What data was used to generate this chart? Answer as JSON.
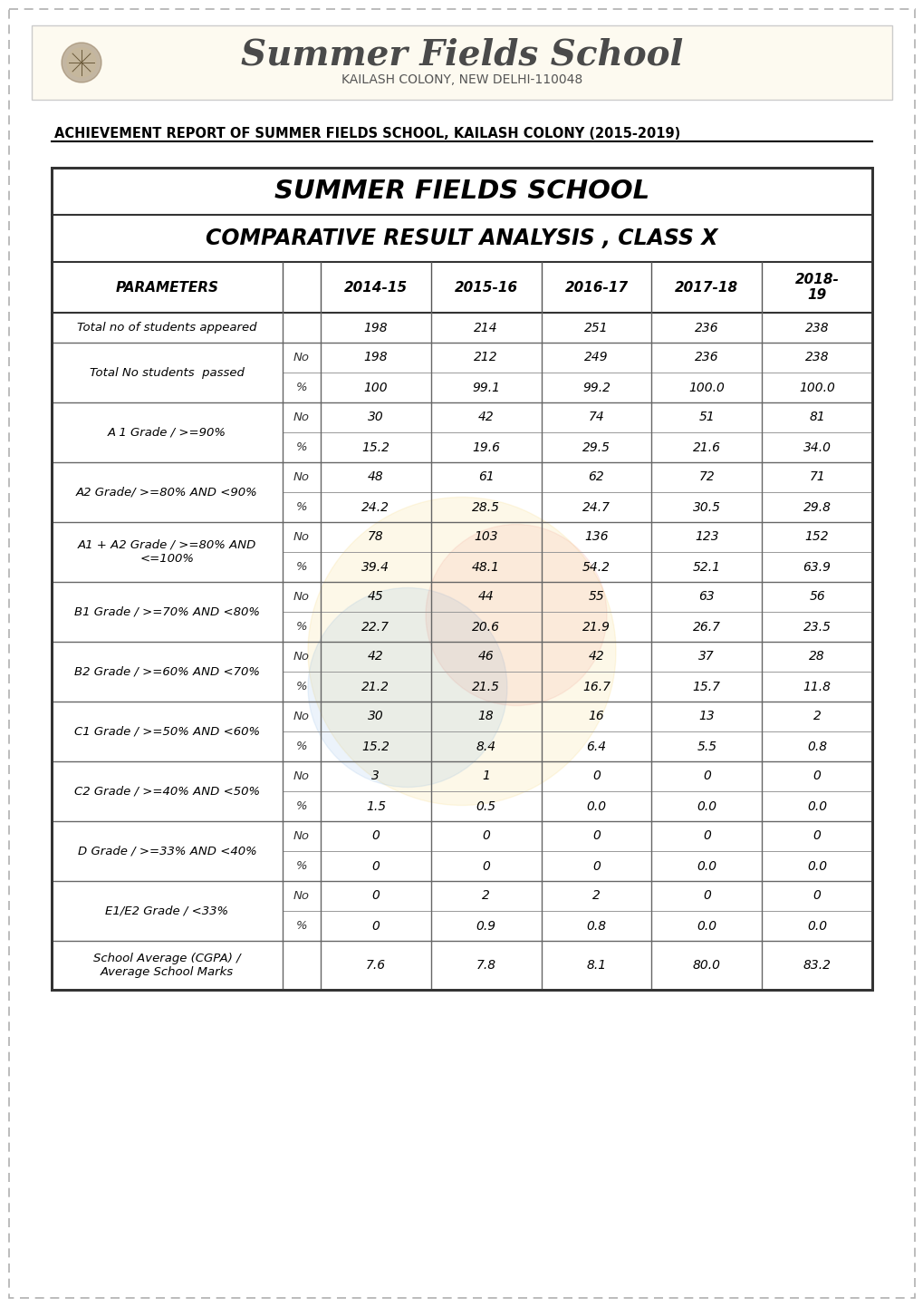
{
  "school_name": "Summer Fields School",
  "school_subtitle": "KAILASH COLONY, NEW DELHI-110048",
  "achievement_title": "ACHIEVEMENT REPORT OF SUMMER FIELDS SCHOOL, KAILASH COLONY (2015-2019)",
  "table_title1": "SUMMER FIELDS SCHOOL",
  "table_title2": "COMPARATIVE RESULT ANALYSIS , CLASS X",
  "years": [
    "2014-15",
    "2015-16",
    "2016-17",
    "2017-18",
    "2018-\n19"
  ],
  "page_bg": "#ffffff",
  "dashed_border_color": "#aaaaaa",
  "groups": [
    {
      "param": "Total no of students appeared",
      "subs": [
        [
          "",
          [
            "198",
            "214",
            "251",
            "236",
            "238"
          ]
        ]
      ],
      "tall": false
    },
    {
      "param": "Total No students  passed",
      "subs": [
        [
          "No",
          [
            "198",
            "212",
            "249",
            "236",
            "238"
          ]
        ],
        [
          "%",
          [
            "100",
            "99.1",
            "99.2",
            "100.0",
            "100.0"
          ]
        ]
      ],
      "tall": false
    },
    {
      "param": "A 1 Grade / >=90%",
      "subs": [
        [
          "No",
          [
            "30",
            "42",
            "74",
            "51",
            "81"
          ]
        ],
        [
          "%",
          [
            "15.2",
            "19.6",
            "29.5",
            "21.6",
            "34.0"
          ]
        ]
      ],
      "tall": false
    },
    {
      "param": "A2 Grade/ >=80% AND <90%",
      "subs": [
        [
          "No",
          [
            "48",
            "61",
            "62",
            "72",
            "71"
          ]
        ],
        [
          "%",
          [
            "24.2",
            "28.5",
            "24.7",
            "30.5",
            "29.8"
          ]
        ]
      ],
      "tall": false
    },
    {
      "param": "A1 + A2 Grade / >=80% AND\n<=100%",
      "subs": [
        [
          "No",
          [
            "78",
            "103",
            "136",
            "123",
            "152"
          ]
        ],
        [
          "%",
          [
            "39.4",
            "48.1",
            "54.2",
            "52.1",
            "63.9"
          ]
        ]
      ],
      "tall": false
    },
    {
      "param": "B1 Grade / >=70% AND <80%",
      "subs": [
        [
          "No",
          [
            "45",
            "44",
            "55",
            "63",
            "56"
          ]
        ],
        [
          "%",
          [
            "22.7",
            "20.6",
            "21.9",
            "26.7",
            "23.5"
          ]
        ]
      ],
      "tall": false
    },
    {
      "param": "B2 Grade / >=60% AND <70%",
      "subs": [
        [
          "No",
          [
            "42",
            "46",
            "42",
            "37",
            "28"
          ]
        ],
        [
          "%",
          [
            "21.2",
            "21.5",
            "16.7",
            "15.7",
            "11.8"
          ]
        ]
      ],
      "tall": false
    },
    {
      "param": "C1 Grade / >=50% AND <60%",
      "subs": [
        [
          "No",
          [
            "30",
            "18",
            "16",
            "13",
            "2"
          ]
        ],
        [
          "%",
          [
            "15.2",
            "8.4",
            "6.4",
            "5.5",
            "0.8"
          ]
        ]
      ],
      "tall": false
    },
    {
      "param": "C2 Grade / >=40% AND <50%",
      "subs": [
        [
          "No",
          [
            "3",
            "1",
            "0",
            "0",
            "0"
          ]
        ],
        [
          "%",
          [
            "1.5",
            "0.5",
            "0.0",
            "0.0",
            "0.0"
          ]
        ]
      ],
      "tall": false
    },
    {
      "param": "D Grade / >=33% AND <40%",
      "subs": [
        [
          "No",
          [
            "0",
            "0",
            "0",
            "0",
            "0"
          ]
        ],
        [
          "%",
          [
            "0",
            "0",
            "0",
            "0.0",
            "0.0"
          ]
        ]
      ],
      "tall": false
    },
    {
      "param": "E1/E2 Grade / <33%",
      "subs": [
        [
          "No",
          [
            "0",
            "2",
            "2",
            "0",
            "0"
          ]
        ],
        [
          "%",
          [
            "0",
            "0.9",
            "0.8",
            "0.0",
            "0.0"
          ]
        ]
      ],
      "tall": false
    },
    {
      "param": "School Average (CGPA) /\nAverage School Marks",
      "subs": [
        [
          "",
          [
            "7.6",
            "7.8",
            "8.1",
            "80.0",
            "83.2"
          ]
        ]
      ],
      "tall": true
    }
  ]
}
